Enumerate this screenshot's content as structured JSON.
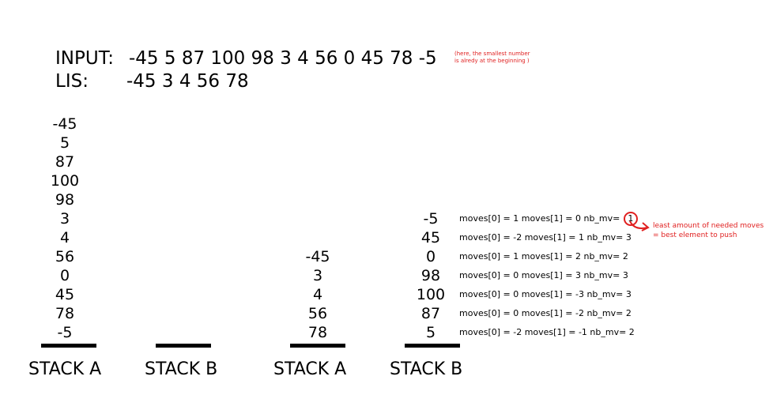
{
  "input_label": "INPUT:",
  "input_values": "-45 5 87 100 98 3 4 56 0 45 78 -5",
  "input_note_line1": "(here, the smallest number",
  "input_note_line2": "is alredy at the beginning )",
  "lis_label": "LIS:",
  "lis_values": "-45 3 4 56 78",
  "stage1": {
    "stack_a": [
      "-45",
      "5",
      "87",
      "100",
      "98",
      "3",
      "4",
      "56",
      "0",
      "45",
      "78",
      "-5"
    ],
    "stack_a_label": "STACK A",
    "stack_b_label": "STACK B"
  },
  "stage2": {
    "stack_a": [
      "-45",
      "3",
      "4",
      "56",
      "78"
    ],
    "stack_b": [
      "-5",
      "45",
      "0",
      "98",
      "100",
      "87",
      "5"
    ],
    "stack_a_label": "STACK A",
    "stack_b_label": "STACK B",
    "moves": [
      "moves[0] = 1 moves[1] = 0 nb_mv= ",
      "moves[0] = -2 moves[1] = 1 nb_mv= 3",
      "moves[0] = 1 moves[1] = 2 nb_mv= 2",
      "moves[0] = 0 moves[1] = 3 nb_mv= 3",
      "moves[0] = 0 moves[1] = -3 nb_mv= 3",
      "moves[0] = 0 moves[1] = -2 nb_mv= 2",
      "moves[0] = -2 moves[1] = -1 nb_mv= 2"
    ],
    "best_value": "1",
    "best_note_line1": "least amount of needed moves",
    "best_note_line2": "= best element to push"
  }
}
